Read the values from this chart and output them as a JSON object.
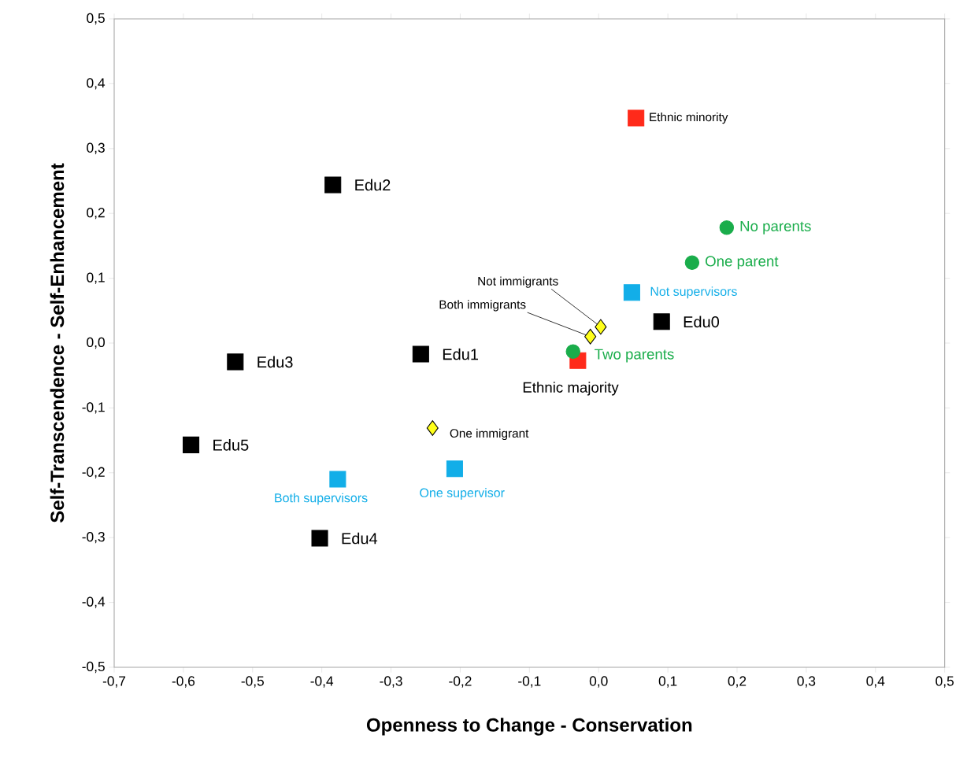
{
  "chart_data": {
    "type": "scatter",
    "xlabel": "Openness to Change - Conservation",
    "ylabel": "Self-Transcendence - Self-Enhancement",
    "xlim": [
      -0.7,
      0.5
    ],
    "ylim": [
      -0.5,
      0.5
    ],
    "xticks": [
      {
        "value": -0.7,
        "label": "-0,7"
      },
      {
        "value": -0.6,
        "label": "-0,6"
      },
      {
        "value": -0.5,
        "label": "-0,5"
      },
      {
        "value": -0.4,
        "label": "-0,4"
      },
      {
        "value": -0.3,
        "label": "-0,3"
      },
      {
        "value": -0.2,
        "label": "-0,2"
      },
      {
        "value": -0.1,
        "label": "-0,1"
      },
      {
        "value": 0,
        "label": "0,0"
      },
      {
        "value": 0.1,
        "label": "0,1"
      },
      {
        "value": 0.2,
        "label": "0,2"
      },
      {
        "value": 0.3,
        "label": "0,3"
      },
      {
        "value": 0.4,
        "label": "0,4"
      },
      {
        "value": 0.5,
        "label": "0,5"
      }
    ],
    "yticks": [
      {
        "value": -0.5,
        "label": "-0,5"
      },
      {
        "value": -0.4,
        "label": "-0,4"
      },
      {
        "value": -0.3,
        "label": "-0,3"
      },
      {
        "value": -0.2,
        "label": "-0,2"
      },
      {
        "value": -0.1,
        "label": "-0,1"
      },
      {
        "value": 0,
        "label": "0,0"
      },
      {
        "value": 0.1,
        "label": "0,1"
      },
      {
        "value": 0.2,
        "label": "0,2"
      },
      {
        "value": 0.3,
        "label": "0,3"
      },
      {
        "value": 0.4,
        "label": "0,4"
      },
      {
        "value": 0.5,
        "label": "0,5"
      }
    ],
    "grid": false,
    "series": [
      {
        "color": "#000000",
        "marker": "square",
        "x": [
          0.091,
          -0.257,
          -0.384,
          -0.525,
          -0.403,
          -0.589
        ],
        "values": [
          0.033,
          -0.017,
          0.244,
          -0.029,
          -0.301,
          -0.157
        ]
      },
      {
        "color": "#ff2a1a",
        "marker": "square",
        "x": [
          0.054,
          -0.03
        ],
        "values": [
          0.347,
          -0.027
        ]
      },
      {
        "color": "#1aad4b",
        "marker": "circle",
        "x": [
          0.185,
          0.135,
          -0.037
        ],
        "values": [
          0.178,
          0.124,
          -0.013
        ]
      },
      {
        "color": "#12aee8",
        "marker": "square",
        "x": [
          0.048,
          -0.377,
          -0.208
        ],
        "values": [
          0.078,
          -0.21,
          -0.194
        ]
      },
      {
        "color": "#ffff1a",
        "marker": "diamond",
        "x": [
          0.003,
          -0.012,
          -0.24
        ],
        "values": [
          0.025,
          0.01,
          -0.131
        ]
      }
    ],
    "annotations": [
      {
        "text": "Edu0",
        "x": 0.091,
        "y": 0.033
      },
      {
        "text": "Edu1",
        "x": -0.257,
        "y": -0.017
      },
      {
        "text": "Edu2",
        "x": -0.384,
        "y": 0.244
      },
      {
        "text": "Edu3",
        "x": -0.525,
        "y": -0.029
      },
      {
        "text": "Edu4",
        "x": -0.403,
        "y": -0.301
      },
      {
        "text": "Edu5",
        "x": -0.589,
        "y": -0.157
      },
      {
        "text": "Ethnic minority",
        "x": 0.054,
        "y": 0.347
      },
      {
        "text": "Ethnic majority",
        "x": -0.03,
        "y": -0.027
      },
      {
        "text": "No parents",
        "x": 0.185,
        "y": 0.178
      },
      {
        "text": "One parent",
        "x": 0.135,
        "y": 0.124
      },
      {
        "text": "Two parents",
        "x": -0.037,
        "y": -0.013
      },
      {
        "text": "Not supervisors",
        "x": 0.048,
        "y": 0.078
      },
      {
        "text": "Both supervisors",
        "x": -0.377,
        "y": -0.21
      },
      {
        "text": "One supervisor",
        "x": -0.208,
        "y": -0.194
      },
      {
        "text": "Not immigrants",
        "x": 0.003,
        "y": 0.025
      },
      {
        "text": "Both immigrants",
        "x": -0.012,
        "y": 0.01
      },
      {
        "text": "One immigrant",
        "x": -0.24,
        "y": -0.131
      }
    ]
  }
}
